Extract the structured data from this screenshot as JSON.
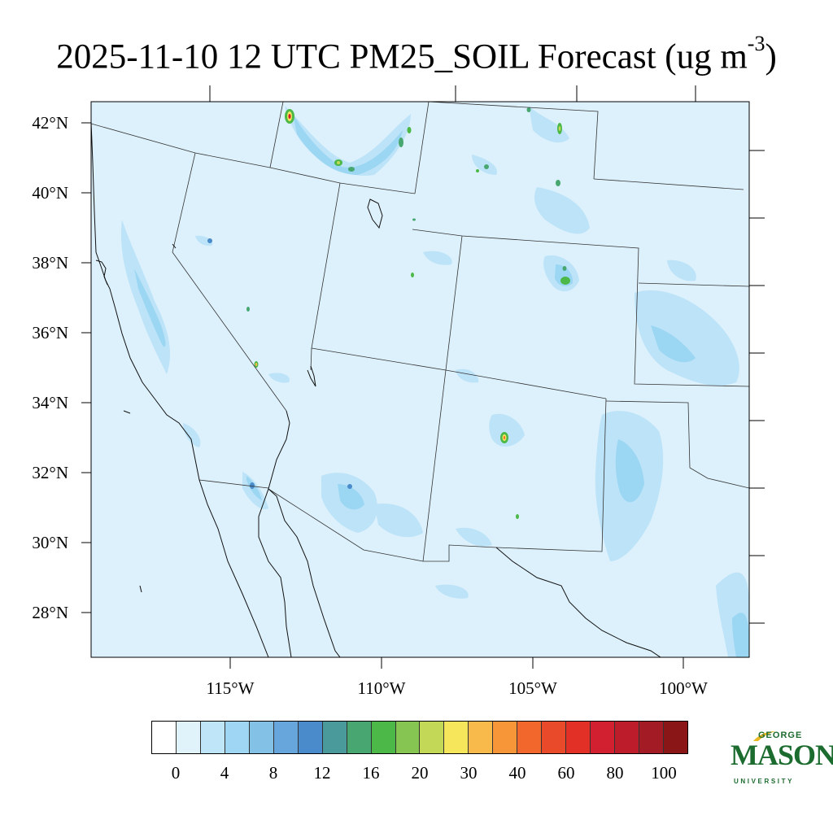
{
  "title": {
    "main": "2025-11-10 12 UTC PM25_SOIL Forecast (ug m",
    "sup": "-3",
    "close": ")"
  },
  "map": {
    "lat_labels": [
      "42°N",
      "40°N",
      "38°N",
      "36°N",
      "34°N",
      "32°N",
      "30°N",
      "28°N"
    ],
    "lon_labels": [
      "115°W",
      "110°W",
      "105°W",
      "100°W"
    ],
    "ocean_color": "#ddf1fc",
    "land_color": "#ddf1fc",
    "light_blue": "#bde3f8",
    "mid_blue": "#9bd6f3",
    "deep_blue": "#6fb3e3"
  },
  "colorbar": {
    "colors": [
      "#ffffff",
      "#e0f3fb",
      "#bfe6f8",
      "#9ed6f3",
      "#84c1e6",
      "#67a6dd",
      "#4a8bcb",
      "#4a9a9c",
      "#48a771",
      "#4cb847",
      "#86c551",
      "#c3d856",
      "#f6e65b",
      "#f8ba4b",
      "#f69639",
      "#f2682c",
      "#e94b2a",
      "#e23026",
      "#d22030",
      "#bd1d2b",
      "#a31b25",
      "#8b1618"
    ],
    "labels": [
      "0",
      "4",
      "8",
      "12",
      "16",
      "20",
      "30",
      "40",
      "60",
      "80",
      "100"
    ]
  },
  "logo": {
    "line1": "GEORGE",
    "line2": "MASON",
    "line3": "UNIVERSITY",
    "color": "#1c6b2f",
    "accent": "#e8b822"
  }
}
